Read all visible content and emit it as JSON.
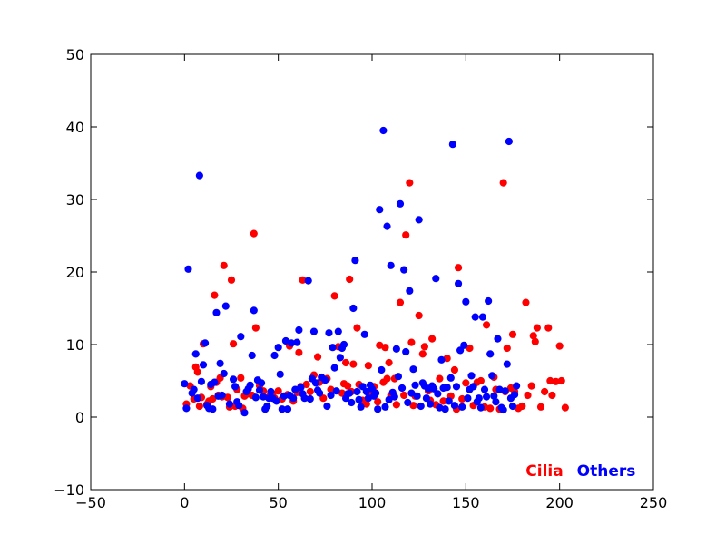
{
  "chart_data": {
    "type": "scatter",
    "title": "",
    "xlabel": "",
    "ylabel": "",
    "xlim": [
      -50,
      250
    ],
    "ylim": [
      -10,
      50
    ],
    "xticks": [
      -50,
      0,
      50,
      100,
      150,
      200,
      250
    ],
    "yticks": [
      -10,
      0,
      10,
      20,
      30,
      40,
      50
    ],
    "xtick_labels": [
      "−50",
      "0",
      "50",
      "100",
      "150",
      "200",
      "250"
    ],
    "ytick_labels": [
      "−10",
      "0",
      "10",
      "20",
      "30",
      "40",
      "50"
    ],
    "grid": false,
    "legend": {
      "placement": "bottom-right"
    },
    "series": [
      {
        "name": "Cilia",
        "color": "#ff0000",
        "points": [
          [
            1,
            1.8
          ],
          [
            3,
            4.3
          ],
          [
            5,
            2.5
          ],
          [
            6,
            6.9
          ],
          [
            7,
            6.2
          ],
          [
            8,
            1.5
          ],
          [
            9,
            2.7
          ],
          [
            10,
            10.1
          ],
          [
            12,
            1.8
          ],
          [
            13,
            2.2
          ],
          [
            14,
            4.2
          ],
          [
            15,
            2.5
          ],
          [
            16,
            16.8
          ],
          [
            17,
            4.8
          ],
          [
            18,
            3.0
          ],
          [
            19,
            5.4
          ],
          [
            20,
            2.8
          ],
          [
            21,
            20.9
          ],
          [
            23,
            2.7
          ],
          [
            24,
            1.4
          ],
          [
            25,
            18.9
          ],
          [
            26,
            10.1
          ],
          [
            27,
            1.5
          ],
          [
            28,
            3.8
          ],
          [
            30,
            5.4
          ],
          [
            31,
            1.2
          ],
          [
            32,
            2.9
          ],
          [
            34,
            3.2
          ],
          [
            36,
            3.0
          ],
          [
            37,
            25.3
          ],
          [
            38,
            12.3
          ],
          [
            40,
            4.3
          ],
          [
            42,
            3.6
          ],
          [
            45,
            2.8
          ],
          [
            47,
            3.2
          ],
          [
            48,
            2.6
          ],
          [
            50,
            3.6
          ],
          [
            52,
            2.5
          ],
          [
            55,
            3.1
          ],
          [
            56,
            9.8
          ],
          [
            58,
            2.2
          ],
          [
            60,
            3.4
          ],
          [
            61,
            8.9
          ],
          [
            62,
            4.2
          ],
          [
            63,
            18.9
          ],
          [
            65,
            4.5
          ],
          [
            67,
            3.5
          ],
          [
            69,
            5.8
          ],
          [
            71,
            8.3
          ],
          [
            72,
            4.8
          ],
          [
            74,
            2.6
          ],
          [
            76,
            5.3
          ],
          [
            78,
            3.8
          ],
          [
            80,
            16.7
          ],
          [
            82,
            9.7
          ],
          [
            84,
            3.3
          ],
          [
            85,
            4.6
          ],
          [
            86,
            7.5
          ],
          [
            87,
            4.3
          ],
          [
            88,
            19.0
          ],
          [
            89,
            3.5
          ],
          [
            90,
            7.3
          ],
          [
            92,
            12.3
          ],
          [
            93,
            4.5
          ],
          [
            95,
            2.3
          ],
          [
            97,
            1.8
          ],
          [
            98,
            7.1
          ],
          [
            100,
            3.0
          ],
          [
            101,
            4.2
          ],
          [
            103,
            2.1
          ],
          [
            104,
            9.9
          ],
          [
            106,
            4.8
          ],
          [
            107,
            9.6
          ],
          [
            108,
            5.3
          ],
          [
            109,
            7.5
          ],
          [
            110,
            3.0
          ],
          [
            112,
            5.3
          ],
          [
            113,
            1.7
          ],
          [
            115,
            15.8
          ],
          [
            117,
            3.0
          ],
          [
            118,
            25.1
          ],
          [
            120,
            32.3
          ],
          [
            121,
            10.3
          ],
          [
            122,
            1.6
          ],
          [
            123,
            2.9
          ],
          [
            125,
            14.0
          ],
          [
            127,
            8.7
          ],
          [
            128,
            9.7
          ],
          [
            130,
            3.6
          ],
          [
            131,
            2.3
          ],
          [
            132,
            10.8
          ],
          [
            134,
            1.7
          ],
          [
            136,
            5.3
          ],
          [
            138,
            2.2
          ],
          [
            140,
            8.1
          ],
          [
            142,
            2.9
          ],
          [
            144,
            6.5
          ],
          [
            145,
            1.1
          ],
          [
            146,
            20.6
          ],
          [
            148,
            2.5
          ],
          [
            150,
            4.7
          ],
          [
            152,
            9.5
          ],
          [
            154,
            1.6
          ],
          [
            156,
            4.8
          ],
          [
            158,
            5.0
          ],
          [
            160,
            1.4
          ],
          [
            161,
            12.7
          ],
          [
            163,
            1.2
          ],
          [
            165,
            5.5
          ],
          [
            166,
            3.8
          ],
          [
            168,
            1.1
          ],
          [
            170,
            32.3
          ],
          [
            171,
            3.5
          ],
          [
            172,
            9.5
          ],
          [
            174,
            4.0
          ],
          [
            175,
            11.4
          ],
          [
            176,
            3.5
          ],
          [
            178,
            1.2
          ],
          [
            180,
            1.5
          ],
          [
            182,
            15.8
          ],
          [
            183,
            3.0
          ],
          [
            185,
            4.3
          ],
          [
            186,
            11.2
          ],
          [
            187,
            10.4
          ],
          [
            188,
            12.3
          ],
          [
            190,
            1.4
          ],
          [
            192,
            3.5
          ],
          [
            194,
            12.3
          ],
          [
            195,
            5.0
          ],
          [
            196,
            3.0
          ],
          [
            198,
            4.9
          ],
          [
            200,
            9.8
          ],
          [
            201,
            5.0
          ],
          [
            203,
            1.3
          ]
        ]
      },
      {
        "name": "Others",
        "color": "#0000ff",
        "points": [
          [
            0,
            4.6
          ],
          [
            1,
            1.2
          ],
          [
            2,
            20.4
          ],
          [
            4,
            3.3
          ],
          [
            5,
            3.8
          ],
          [
            6,
            8.7
          ],
          [
            7,
            2.6
          ],
          [
            8,
            33.3
          ],
          [
            9,
            4.9
          ],
          [
            10,
            7.2
          ],
          [
            11,
            10.2
          ],
          [
            12,
            1.6
          ],
          [
            13,
            1.2
          ],
          [
            14,
            4.5
          ],
          [
            15,
            1.1
          ],
          [
            16,
            4.8
          ],
          [
            17,
            14.4
          ],
          [
            18,
            2.9
          ],
          [
            19,
            7.4
          ],
          [
            20,
            3.0
          ],
          [
            21,
            6.0
          ],
          [
            22,
            15.3
          ],
          [
            24,
            1.8
          ],
          [
            26,
            5.2
          ],
          [
            27,
            4.2
          ],
          [
            28,
            2.1
          ],
          [
            29,
            1.6
          ],
          [
            30,
            11.1
          ],
          [
            32,
            0.6
          ],
          [
            33,
            3.5
          ],
          [
            34,
            3.9
          ],
          [
            35,
            4.4
          ],
          [
            36,
            8.5
          ],
          [
            37,
            14.7
          ],
          [
            38,
            2.7
          ],
          [
            39,
            5.1
          ],
          [
            40,
            3.7
          ],
          [
            41,
            4.7
          ],
          [
            42,
            2.8
          ],
          [
            43,
            1.1
          ],
          [
            44,
            1.5
          ],
          [
            45,
            2.6
          ],
          [
            46,
            3.5
          ],
          [
            47,
            2.6
          ],
          [
            48,
            8.5
          ],
          [
            49,
            2.2
          ],
          [
            50,
            9.6
          ],
          [
            51,
            5.9
          ],
          [
            52,
            1.1
          ],
          [
            53,
            2.9
          ],
          [
            54,
            10.5
          ],
          [
            55,
            1.1
          ],
          [
            56,
            3.0
          ],
          [
            57,
            10.2
          ],
          [
            58,
            2.6
          ],
          [
            59,
            3.8
          ],
          [
            60,
            10.3
          ],
          [
            61,
            12.0
          ],
          [
            62,
            4.1
          ],
          [
            63,
            3.2
          ],
          [
            64,
            2.6
          ],
          [
            66,
            18.8
          ],
          [
            67,
            2.5
          ],
          [
            68,
            5.3
          ],
          [
            69,
            11.8
          ],
          [
            70,
            4.7
          ],
          [
            71,
            3.7
          ],
          [
            72,
            3.3
          ],
          [
            73,
            5.5
          ],
          [
            75,
            5.1
          ],
          [
            76,
            1.5
          ],
          [
            77,
            11.6
          ],
          [
            78,
            3.0
          ],
          [
            79,
            9.6
          ],
          [
            80,
            6.8
          ],
          [
            81,
            3.6
          ],
          [
            82,
            11.8
          ],
          [
            83,
            8.2
          ],
          [
            84,
            9.5
          ],
          [
            85,
            10.0
          ],
          [
            86,
            2.6
          ],
          [
            87,
            3.2
          ],
          [
            88,
            3.3
          ],
          [
            89,
            2.0
          ],
          [
            90,
            15.0
          ],
          [
            91,
            21.6
          ],
          [
            92,
            3.5
          ],
          [
            93,
            2.4
          ],
          [
            94,
            1.4
          ],
          [
            95,
            4.2
          ],
          [
            96,
            11.4
          ],
          [
            97,
            3.5
          ],
          [
            98,
            2.6
          ],
          [
            99,
            4.4
          ],
          [
            100,
            3.9
          ],
          [
            101,
            2.9
          ],
          [
            102,
            3.3
          ],
          [
            103,
            1.1
          ],
          [
            104,
            28.6
          ],
          [
            105,
            6.5
          ],
          [
            106,
            39.5
          ],
          [
            107,
            1.4
          ],
          [
            108,
            26.3
          ],
          [
            109,
            2.4
          ],
          [
            110,
            20.9
          ],
          [
            111,
            3.4
          ],
          [
            112,
            2.8
          ],
          [
            113,
            9.4
          ],
          [
            114,
            5.6
          ],
          [
            115,
            29.4
          ],
          [
            116,
            4.0
          ],
          [
            117,
            20.3
          ],
          [
            118,
            9.0
          ],
          [
            119,
            2.0
          ],
          [
            120,
            17.4
          ],
          [
            121,
            3.3
          ],
          [
            122,
            6.6
          ],
          [
            123,
            4.4
          ],
          [
            124,
            2.9
          ],
          [
            125,
            27.2
          ],
          [
            126,
            1.5
          ],
          [
            127,
            4.7
          ],
          [
            128,
            4.3
          ],
          [
            129,
            2.6
          ],
          [
            130,
            3.9
          ],
          [
            131,
            1.8
          ],
          [
            132,
            4.3
          ],
          [
            133,
            3.9
          ],
          [
            134,
            19.1
          ],
          [
            135,
            3.2
          ],
          [
            136,
            1.3
          ],
          [
            137,
            7.9
          ],
          [
            138,
            4.0
          ],
          [
            139,
            1.1
          ],
          [
            140,
            4.1
          ],
          [
            141,
            2.2
          ],
          [
            142,
            5.4
          ],
          [
            143,
            37.6
          ],
          [
            144,
            1.6
          ],
          [
            145,
            4.2
          ],
          [
            146,
            18.4
          ],
          [
            147,
            9.2
          ],
          [
            148,
            1.4
          ],
          [
            149,
            9.9
          ],
          [
            150,
            15.9
          ],
          [
            151,
            2.6
          ],
          [
            152,
            3.8
          ],
          [
            153,
            5.7
          ],
          [
            154,
            4.2
          ],
          [
            155,
            13.8
          ],
          [
            156,
            2.1
          ],
          [
            157,
            2.6
          ],
          [
            158,
            1.3
          ],
          [
            159,
            13.8
          ],
          [
            160,
            3.8
          ],
          [
            161,
            2.8
          ],
          [
            162,
            16.0
          ],
          [
            163,
            8.7
          ],
          [
            164,
            5.7
          ],
          [
            165,
            2.9
          ],
          [
            166,
            2.1
          ],
          [
            167,
            10.8
          ],
          [
            168,
            3.8
          ],
          [
            169,
            1.3
          ],
          [
            170,
            1.0
          ],
          [
            171,
            3.6
          ],
          [
            172,
            7.3
          ],
          [
            173,
            38.0
          ],
          [
            174,
            2.6
          ],
          [
            175,
            1.5
          ],
          [
            176,
            3.1
          ],
          [
            177,
            4.3
          ]
        ]
      }
    ]
  }
}
